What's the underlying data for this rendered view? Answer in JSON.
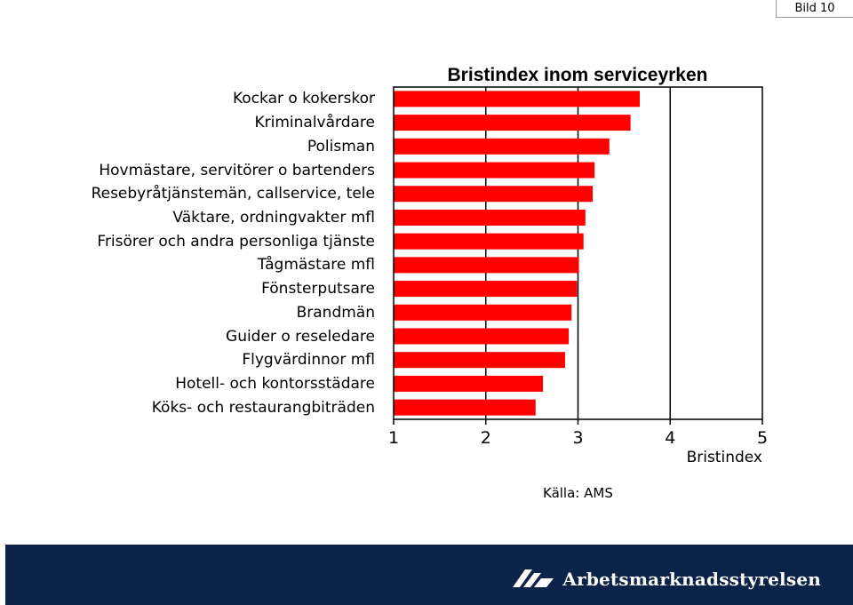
{
  "slide_label": "Bild 10",
  "chart_data": {
    "type": "bar",
    "orientation": "horizontal",
    "title": "Bristindex inom serviceyrken",
    "xlabel": "Bristindex",
    "xlim": [
      1,
      5
    ],
    "xticks": [
      "1",
      "2",
      "3",
      "4",
      "5"
    ],
    "grid": true,
    "bar_color": "#ff0000",
    "categories": [
      "Kockar o kokerskor",
      "Kriminalvårdare",
      "Polisman",
      "Hovmästare, servitörer o bartenders",
      "Resebyråtjänstemän, callservice, tele",
      "Väktare, ordningvakter mfl",
      "Frisörer och andra personliga tjänste",
      "Tågmästare mfl",
      "Fönsterputsare",
      "Brandmän",
      "Guider o reseledare",
      "Flygvärdinnor mfl",
      "Hotell- och kontorsstädare",
      "Köks- och restaurangbiträden"
    ],
    "values": [
      3.67,
      3.57,
      3.34,
      3.18,
      3.16,
      3.08,
      3.06,
      3.01,
      2.99,
      2.93,
      2.9,
      2.86,
      2.62,
      2.54
    ],
    "source": "Källa: AMS"
  },
  "footer": {
    "brand": "Arbetsmarknadsstyrelsen",
    "background": "#0c2349"
  }
}
